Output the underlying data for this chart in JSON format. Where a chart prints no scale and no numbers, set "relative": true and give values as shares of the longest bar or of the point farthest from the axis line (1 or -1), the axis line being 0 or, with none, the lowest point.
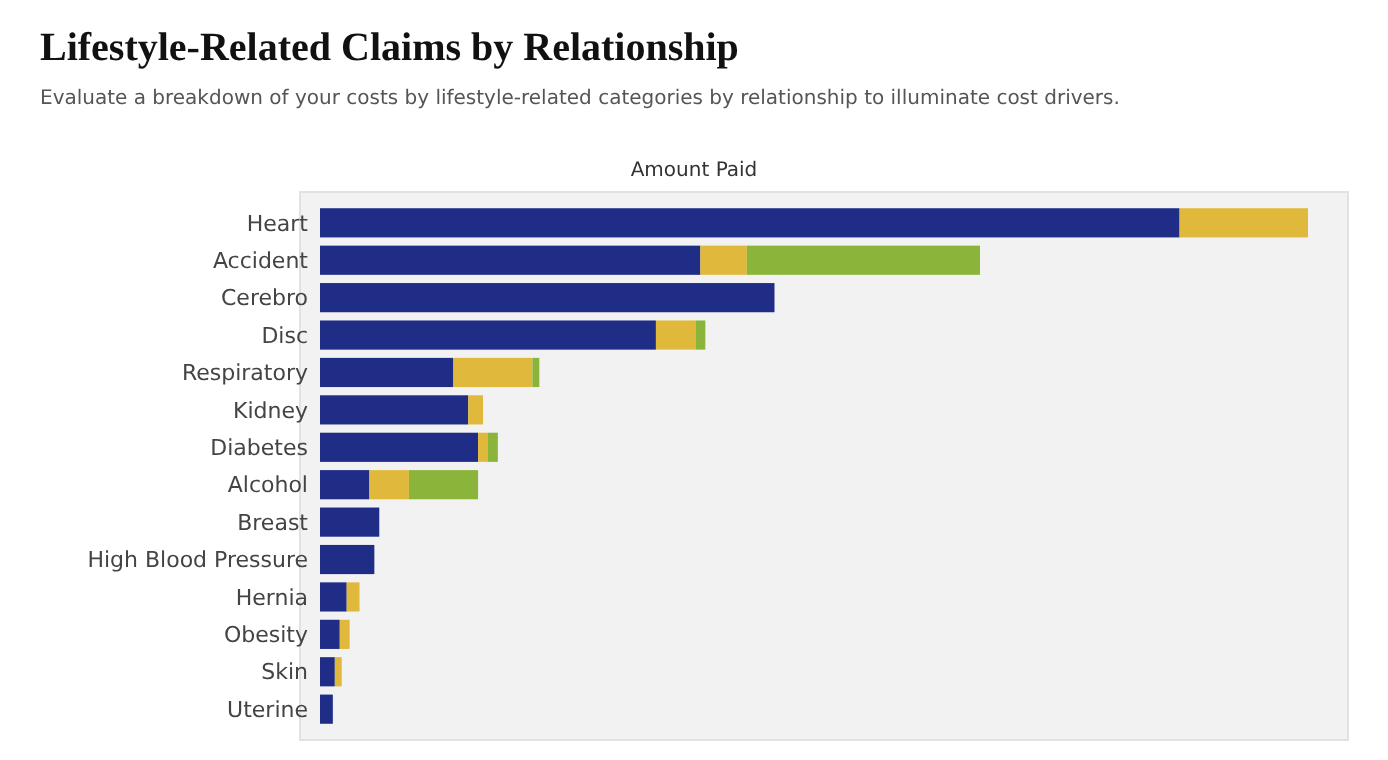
{
  "chart_data": {
    "type": "bar",
    "orientation": "horizontal",
    "stacked": true,
    "relative": true,
    "title": "Lifestyle-Related Claims by Relationship",
    "subtitle": "Evaluate a breakdown of your costs by lifestyle-related categories by relationship to illuminate cost drivers.",
    "annotations": [
      "Amount Paid"
    ],
    "categories": [
      "Heart",
      "Accident",
      "Cerebro",
      "Disc",
      "Respiratory",
      "Kidney",
      "Diabetes",
      "Alcohol",
      "Breast",
      "High Blood Pressure",
      "Hernia",
      "Obesity",
      "Skin",
      "Uterine"
    ],
    "series": [
      {
        "color": "#1f2d86",
        "values": [
          0.87,
          0.385,
          0.46,
          0.34,
          0.135,
          0.15,
          0.16,
          0.05,
          0.06,
          0.055,
          0.027,
          0.02,
          0.015,
          0.013
        ]
      },
      {
        "color": "#e0b93c",
        "values": [
          0.13,
          0.047,
          0,
          0.04,
          0.08,
          0.015,
          0.01,
          0.04,
          0,
          0,
          0.013,
          0.01,
          0.007,
          0
        ]
      },
      {
        "color": "#8ab53a",
        "values": [
          0,
          0.236,
          0,
          0.01,
          0.007,
          0,
          0.01,
          0.07,
          0,
          0,
          0,
          0,
          0,
          0
        ]
      }
    ]
  }
}
